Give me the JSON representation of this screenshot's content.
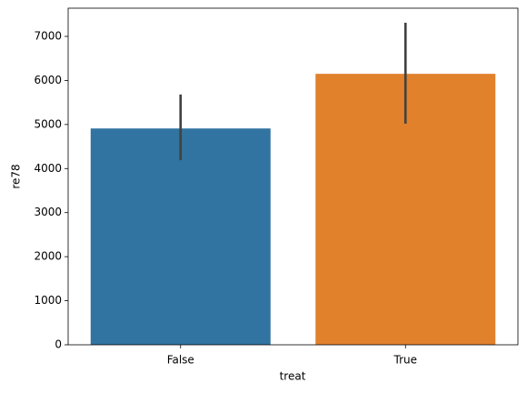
{
  "chart_data": {
    "type": "bar",
    "x_label": "treat",
    "y_label": "re78",
    "categories": [
      "False",
      "True"
    ],
    "values": [
      4910,
      6150
    ],
    "ci_low": [
      4190,
      5020
    ],
    "ci_high": [
      5680,
      7310
    ],
    "colors": [
      "#3274a1",
      "#e1812c"
    ],
    "errorbar_color": "#424242",
    "ylim": [
      0,
      7640
    ],
    "yticks": [
      0,
      1000,
      2000,
      3000,
      4000,
      5000,
      6000,
      7000
    ]
  }
}
